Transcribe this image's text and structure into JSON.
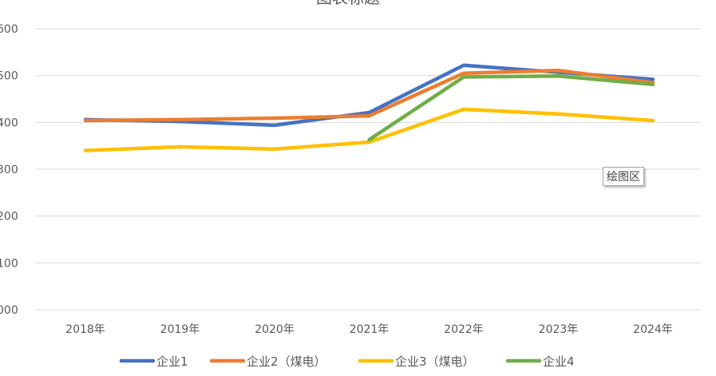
{
  "chart_data": {
    "type": "line",
    "title": "图表标题",
    "categories": [
      "2018年",
      "2019年",
      "2020年",
      "2021年",
      "2022年",
      "2023年",
      "2024年"
    ],
    "y_tick_labels": [
      "000",
      "100",
      "200",
      "300",
      "400",
      "500",
      "600"
    ],
    "ylim": [
      0,
      600
    ],
    "grid": true,
    "legend_position": "bottom",
    "series": [
      {
        "name": "企业1",
        "color": "#4472C4",
        "values": [
          406,
          402,
          394,
          421,
          522,
          507,
          492
        ]
      },
      {
        "name": "企业2（煤电）",
        "color": "#ED7D31",
        "values": [
          404,
          406,
          409,
          414,
          505,
          511,
          485
        ]
      },
      {
        "name": "企业3（煤电）",
        "color": "#FFC000",
        "values": [
          340,
          348,
          343,
          358,
          428,
          418,
          404
        ]
      },
      {
        "name": "企业4",
        "color": "#70AD47",
        "values": [
          null,
          null,
          null,
          363,
          497,
          499,
          481
        ]
      }
    ]
  },
  "tooltip": {
    "text": "绘图区"
  }
}
